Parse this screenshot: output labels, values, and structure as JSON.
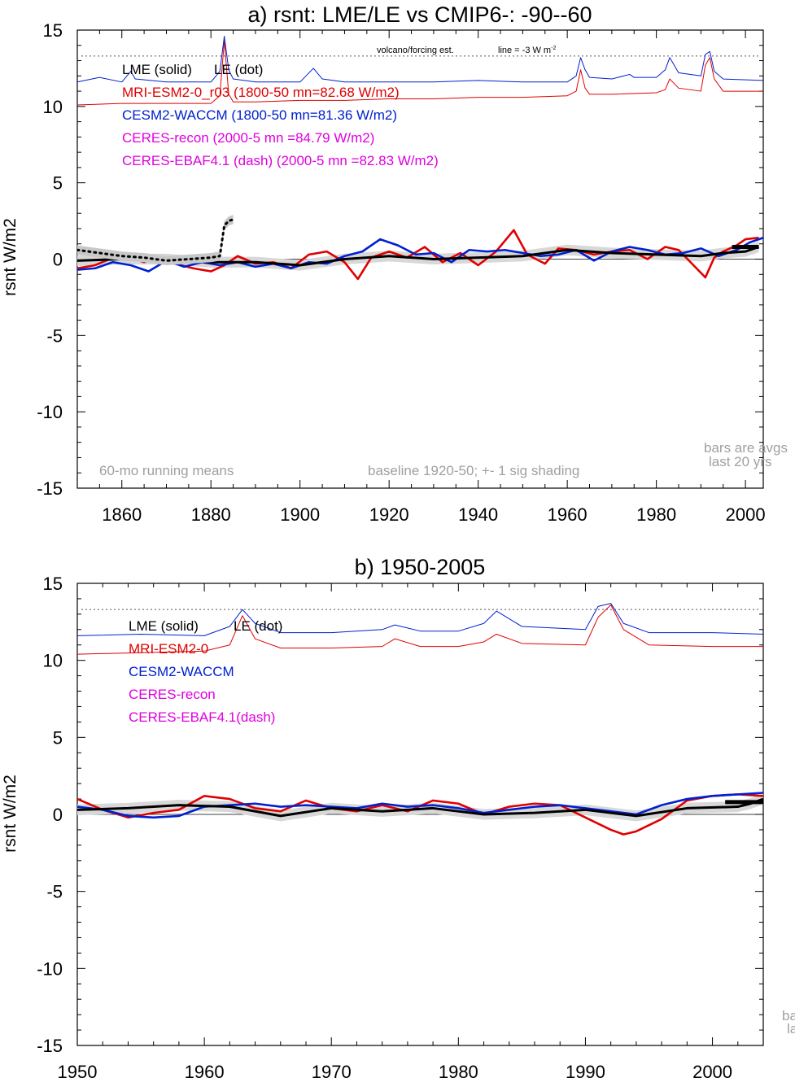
{
  "chart_data": [
    {
      "type": "line",
      "title": "a) rsnt: LME/LE vs CMIP6-: -90--60",
      "ylabel": "rsnt W/m2",
      "xlim": [
        1850,
        2004
      ],
      "ylim": [
        -15,
        15
      ],
      "xticks": [
        1860,
        1880,
        1900,
        1920,
        1940,
        1960,
        1980,
        2000
      ],
      "yticks": [
        15,
        10,
        5,
        0,
        -5,
        -10,
        -15
      ],
      "legend": [
        "LME (solid)",
        "LE (dot)",
        "MRI-ESM2-0_r03 (1800-50 mn=82.68 W/m2)",
        "CESM2-WACCM (1800-50 mn=81.36 W/m2)",
        "CERES-recon (2000-5 mn =84.79 W/m2)",
        "CERES-EBAF4.1 (dash) (2000-5 mn =82.83 W/m2)"
      ],
      "annotations": [
        "volcano/forcing est.",
        "line = -3 W m",
        "60-mo running means",
        "baseline 1920-50; +- 1 sig shading",
        "bars are avgs",
        "last 20 yrs"
      ],
      "volcano_ref_line": 13.3,
      "series": [
        {
          "name": "MRI-ESM2-0_r03",
          "color": "#e00000",
          "x": [
            1850,
            1854,
            1858,
            1861,
            1865,
            1868,
            1872,
            1876,
            1880,
            1883,
            1886,
            1890,
            1894,
            1898,
            1902,
            1906,
            1910,
            1913,
            1916,
            1920,
            1924,
            1928,
            1932,
            1936,
            1940,
            1944,
            1948,
            1951,
            1955,
            1958,
            1962,
            1966,
            1970,
            1974,
            1978,
            1982,
            1985,
            1988,
            1991,
            1993,
            1995,
            1998,
            2000,
            2003
          ],
          "y": [
            -0.6,
            -0.4,
            0.1,
            0.2,
            -0.2,
            0.1,
            -0.3,
            -0.6,
            -0.8,
            -0.4,
            0.2,
            -0.3,
            -0.2,
            -0.6,
            0.3,
            0.5,
            -0.2,
            -1.3,
            0.1,
            0.5,
            0.1,
            0.8,
            -0.2,
            0.4,
            -0.4,
            0.5,
            1.9,
            0.3,
            -0.3,
            0.7,
            0.6,
            0.3,
            0.5,
            0.6,
            0.0,
            0.8,
            0.6,
            -0.3,
            -1.2,
            0.1,
            0.5,
            0.9,
            1.3,
            1.4
          ]
        },
        {
          "name": "CESM2-WACCM",
          "color": "#0020d0",
          "x": [
            1850,
            1854,
            1858,
            1862,
            1866,
            1870,
            1874,
            1878,
            1882,
            1886,
            1890,
            1894,
            1898,
            1902,
            1906,
            1910,
            1914,
            1918,
            1922,
            1926,
            1930,
            1934,
            1938,
            1942,
            1946,
            1950,
            1954,
            1958,
            1962,
            1966,
            1970,
            1974,
            1978,
            1982,
            1986,
            1990,
            1994,
            1998,
            2001,
            2004
          ],
          "y": [
            -0.7,
            -0.6,
            -0.2,
            -0.4,
            -0.8,
            -0.1,
            -0.5,
            -0.2,
            -0.4,
            -0.2,
            -0.5,
            -0.3,
            -0.6,
            -0.2,
            -0.3,
            0.2,
            0.5,
            1.3,
            0.9,
            0.3,
            0.4,
            -0.2,
            0.6,
            0.5,
            0.6,
            0.4,
            0.2,
            0.3,
            0.6,
            -0.1,
            0.5,
            0.8,
            0.6,
            0.3,
            0.4,
            0.7,
            0.2,
            0.6,
            1.1,
            1.4
          ]
        },
        {
          "name": "LME (solid)",
          "color": "#000000",
          "x": [
            1850,
            1860,
            1870,
            1880,
            1890,
            1900,
            1910,
            1920,
            1930,
            1940,
            1950,
            1960,
            1970,
            1980,
            1990,
            1995,
            2000,
            2003
          ],
          "y": [
            -0.1,
            0.0,
            0.0,
            -0.2,
            -0.2,
            -0.4,
            0.0,
            0.2,
            0.0,
            0.1,
            0.2,
            0.6,
            0.4,
            0.3,
            0.2,
            0.4,
            0.5,
            0.8
          ]
        },
        {
          "name": "LE (dot)",
          "color": "#000000",
          "x": [
            1850,
            1855,
            1860,
            1865,
            1870,
            1875,
            1880,
            1882,
            1883,
            1884,
            1885
          ],
          "y": [
            0.6,
            0.4,
            0.2,
            0.1,
            -0.1,
            0.0,
            0.1,
            0.2,
            2.2,
            2.5,
            2.6
          ]
        },
        {
          "name": "MRI-ESM2-0 volcano est.",
          "color": "#e00000",
          "x": [
            1850,
            1860,
            1870,
            1880,
            1882,
            1883,
            1884,
            1885,
            1890,
            1900,
            1910,
            1920,
            1930,
            1940,
            1950,
            1960,
            1962,
            1963,
            1964,
            1965,
            1970,
            1980,
            1982,
            1983,
            1985,
            1990,
            1991,
            1992,
            1993,
            1995,
            2004
          ],
          "y": [
            10.1,
            10.2,
            10.2,
            10.2,
            10.7,
            14.3,
            10.8,
            10.3,
            10.3,
            10.4,
            10.4,
            10.5,
            10.5,
            10.6,
            10.6,
            10.7,
            11.0,
            12.4,
            11.2,
            10.8,
            10.8,
            10.9,
            11.1,
            11.8,
            11.2,
            11.0,
            12.7,
            13.2,
            11.8,
            11.0,
            11.0
          ]
        },
        {
          "name": "CESM2-WACCM volcano est.",
          "color": "#0020d0",
          "x": [
            1850,
            1855,
            1860,
            1862,
            1863,
            1870,
            1880,
            1882,
            1883,
            1884,
            1885,
            1890,
            1900,
            1902,
            1903,
            1905,
            1910,
            1920,
            1930,
            1940,
            1950,
            1960,
            1962,
            1963,
            1964,
            1965,
            1970,
            1974,
            1975,
            1980,
            1982,
            1983,
            1985,
            1990,
            1991,
            1992,
            1993,
            1995,
            2004
          ],
          "y": [
            11.6,
            11.9,
            11.6,
            12.3,
            11.8,
            11.6,
            11.6,
            12.3,
            14.6,
            12.4,
            11.8,
            11.6,
            11.6,
            12.2,
            12.5,
            11.8,
            11.6,
            11.6,
            11.6,
            11.7,
            11.6,
            11.6,
            12.0,
            13.2,
            12.4,
            11.9,
            11.8,
            12.1,
            11.9,
            11.9,
            12.4,
            13.2,
            12.2,
            12.0,
            13.4,
            13.6,
            12.3,
            11.8,
            11.7
          ]
        }
      ],
      "bars": [
        {
          "x": [
            1997,
            2003
          ],
          "y": 0.8,
          "note": "last 20 yrs avg"
        }
      ]
    },
    {
      "type": "line",
      "title": "b) 1950-2005",
      "ylabel": "rsnt W/m2",
      "xlim": [
        1950,
        2004
      ],
      "ylim": [
        -15,
        15
      ],
      "xticks": [
        1950,
        1960,
        1970,
        1980,
        1990,
        2000
      ],
      "yticks": [
        15,
        10,
        5,
        0,
        -5,
        -10,
        -15
      ],
      "legend": [
        "LME (solid)",
        "LE (dot)",
        "MRI-ESM2-0",
        "CESM2-WACCM",
        "CERES-recon",
        "CERES-EBAF4.1(dash)"
      ],
      "annotations": [
        "ba",
        "la"
      ],
      "volcano_ref_line": 13.3,
      "series": [
        {
          "name": "MRI-ESM2-0",
          "color": "#e00000",
          "x": [
            1950,
            1952,
            1954,
            1956,
            1958,
            1960,
            1962,
            1964,
            1966,
            1968,
            1970,
            1972,
            1974,
            1976,
            1978,
            1980,
            1982,
            1984,
            1986,
            1988,
            1990,
            1992,
            1993,
            1994,
            1996,
            1998,
            2000,
            2002,
            2004
          ],
          "y": [
            1.0,
            0.3,
            -0.2,
            0.1,
            0.3,
            1.2,
            1.0,
            0.4,
            0.2,
            0.9,
            0.4,
            0.2,
            0.6,
            0.2,
            0.9,
            0.7,
            0.0,
            0.5,
            0.7,
            0.6,
            -0.2,
            -1.0,
            -1.3,
            -1.1,
            -0.3,
            0.9,
            1.2,
            1.3,
            1.2
          ]
        },
        {
          "name": "CESM2-WACCM",
          "color": "#0020d0",
          "x": [
            1950,
            1952,
            1954,
            1956,
            1958,
            1960,
            1962,
            1964,
            1966,
            1968,
            1970,
            1972,
            1974,
            1976,
            1978,
            1980,
            1982,
            1984,
            1986,
            1988,
            1990,
            1992,
            1994,
            1996,
            1998,
            2000,
            2002,
            2004
          ],
          "y": [
            0.5,
            0.3,
            -0.1,
            -0.2,
            -0.1,
            0.5,
            0.6,
            0.7,
            0.5,
            0.6,
            0.5,
            0.4,
            0.7,
            0.5,
            0.6,
            0.4,
            0.1,
            0.3,
            0.5,
            0.6,
            0.4,
            0.2,
            0.0,
            0.6,
            1.0,
            1.2,
            1.3,
            1.4
          ]
        },
        {
          "name": "LME (solid)",
          "color": "#000000",
          "x": [
            1950,
            1954,
            1958,
            1962,
            1966,
            1970,
            1974,
            1978,
            1982,
            1986,
            1990,
            1994,
            1998,
            2002,
            2003,
            2004
          ],
          "y": [
            0.3,
            0.4,
            0.6,
            0.5,
            -0.1,
            0.4,
            0.2,
            0.4,
            0.0,
            0.1,
            0.3,
            -0.1,
            0.4,
            0.5,
            0.7,
            1.0
          ]
        },
        {
          "name": "MRI-ESM2-0 volcano est.",
          "color": "#e00000",
          "x": [
            1950,
            1955,
            1960,
            1962,
            1963,
            1964,
            1966,
            1970,
            1974,
            1975,
            1977,
            1980,
            1982,
            1983,
            1985,
            1990,
            1991,
            1992,
            1993,
            1995,
            2000,
            2004
          ],
          "y": [
            10.4,
            10.5,
            10.6,
            11.0,
            12.9,
            11.4,
            10.8,
            10.8,
            10.9,
            11.4,
            10.9,
            10.9,
            11.2,
            11.7,
            11.1,
            11.0,
            12.8,
            13.6,
            12.0,
            11.0,
            10.9,
            10.9
          ]
        },
        {
          "name": "CESM2-WACCM volcano est.",
          "color": "#0020d0",
          "x": [
            1950,
            1955,
            1960,
            1962,
            1963,
            1964,
            1966,
            1970,
            1974,
            1975,
            1977,
            1980,
            1982,
            1983,
            1985,
            1990,
            1991,
            1992,
            1993,
            1995,
            2000,
            2004
          ],
          "y": [
            11.6,
            11.7,
            11.6,
            12.2,
            13.3,
            12.4,
            11.8,
            11.8,
            12.0,
            12.3,
            11.9,
            11.9,
            12.4,
            13.2,
            12.2,
            12.0,
            13.5,
            13.7,
            12.4,
            11.8,
            11.8,
            11.7
          ]
        }
      ],
      "bars": [
        {
          "x": [
            2001,
            2004
          ],
          "y": 0.8,
          "note": "last 20 yrs avg"
        }
      ]
    }
  ],
  "legend_colors": {
    "lme": "#000000",
    "mri": "#e00000",
    "cesm": "#0020d0",
    "ceres": "#e000e0",
    "note": "#a0a0a0"
  }
}
